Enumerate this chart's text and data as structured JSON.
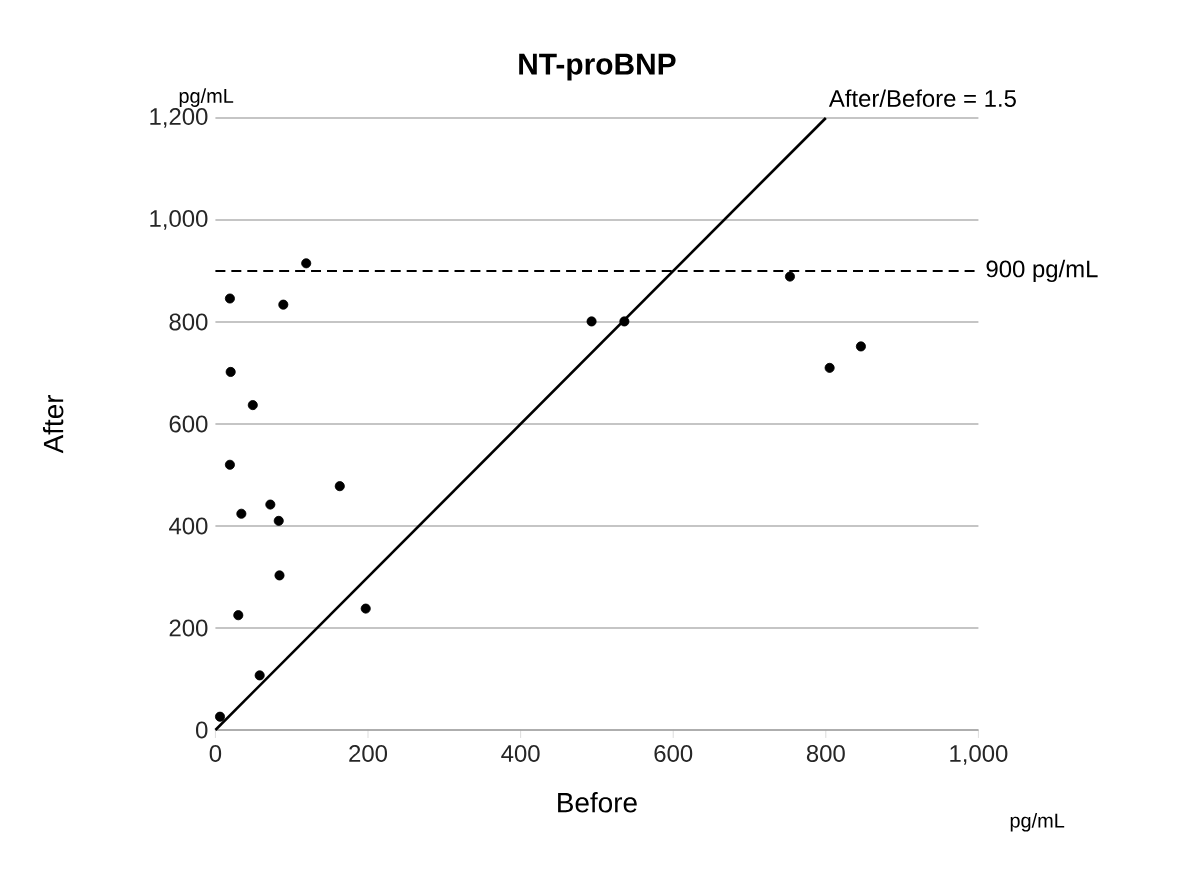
{
  "chart_data": {
    "type": "scatter",
    "title": "NT-proBNP",
    "xlabel": "Before",
    "ylabel": "After",
    "xlim": [
      0,
      1000
    ],
    "ylim": [
      0,
      1200
    ],
    "xticks": [
      0,
      200,
      400,
      600,
      800,
      {
        "value": 1000,
        "label": "1,000"
      }
    ],
    "yticks": [
      0,
      200,
      400,
      600,
      800,
      {
        "value": 1000,
        "label": "1,000"
      },
      {
        "value": 1200,
        "label": "1,200"
      }
    ],
    "grid": "y",
    "series": [
      {
        "marker": "circle",
        "color": "#000000",
        "x": [
          6,
          19,
          119,
          89,
          493,
          536,
          20,
          49,
          19,
          163,
          72,
          34,
          83,
          84,
          30,
          197,
          58,
          753,
          805,
          846
        ],
        "values": [
          26,
          846,
          915,
          834,
          801,
          801,
          702,
          637,
          520,
          478,
          442,
          424,
          410,
          303,
          225,
          238,
          107,
          889,
          710,
          752
        ]
      },
      {
        "type": "line",
        "marker": "none",
        "color": "#000000",
        "x": [
          0,
          800
        ],
        "values": [
          0,
          1200
        ]
      }
    ],
    "ref_lines": [
      {
        "axis": "y",
        "value": 900,
        "label": "900 pg/mL",
        "line_style": "dashed"
      }
    ],
    "annotations": [
      "pg/mL",
      "pg/mL",
      {
        "text": "After/Before = 1.5",
        "x": 800,
        "y": 1200
      }
    ]
  }
}
